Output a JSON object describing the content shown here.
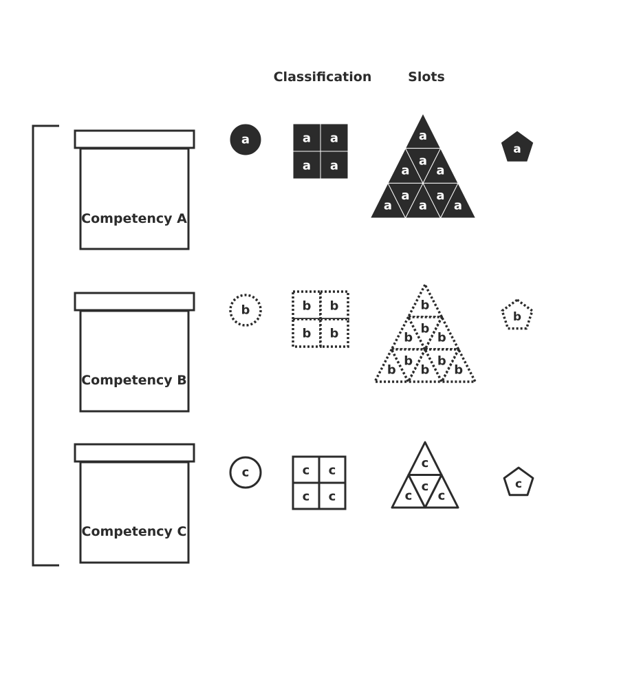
{
  "headers": {
    "classification": "Classification",
    "slots": "Slots"
  },
  "colors": {
    "ink": "#2b2b2b",
    "background": "#ffffff"
  },
  "rows": [
    {
      "competency": "Competency A",
      "letter": "a",
      "style": "filled"
    },
    {
      "competency": "Competency B",
      "letter": "b",
      "style": "dotted"
    },
    {
      "competency": "Competency C",
      "letter": "c",
      "style": "outline"
    }
  ]
}
